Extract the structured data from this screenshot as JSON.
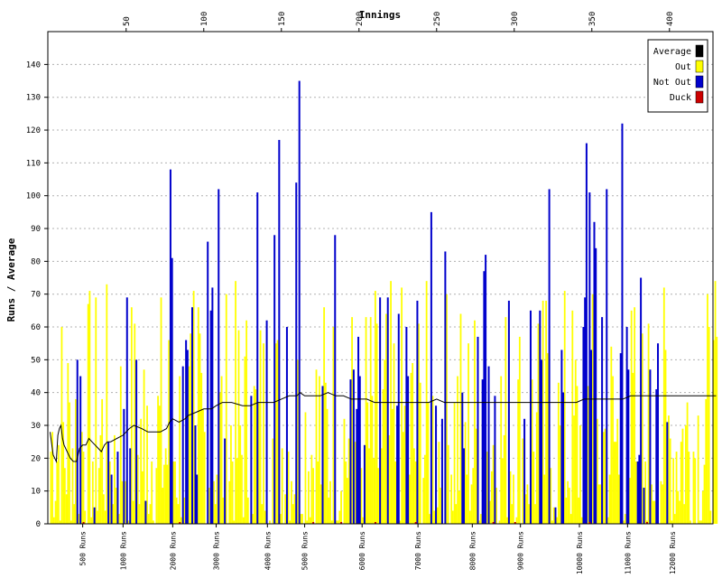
{
  "chart_data": {
    "type": "bar",
    "title": "",
    "xlabel_top": "Innings",
    "ylabel": "Runs / Average",
    "ylim": [
      0,
      150
    ],
    "innings_range": [
      1,
      430
    ],
    "y_ticks": [
      0,
      10,
      20,
      30,
      40,
      50,
      60,
      70,
      80,
      90,
      100,
      110,
      120,
      130,
      140
    ],
    "top_ticks": [
      50,
      100,
      150,
      200,
      250,
      300,
      350,
      400
    ],
    "bottom_ticks": [
      {
        "label": "500 Runs",
        "inning": 22
      },
      {
        "label": "1000 Runs",
        "inning": 48
      },
      {
        "label": "2000 Runs",
        "inning": 80
      },
      {
        "label": "3000 Runs",
        "inning": 108
      },
      {
        "label": "4000 Runs",
        "inning": 141
      },
      {
        "label": "5000 Runs",
        "inning": 165
      },
      {
        "label": "6000 Runs",
        "inning": 202
      },
      {
        "label": "7000 Runs",
        "inning": 238
      },
      {
        "label": "8000 Runs",
        "inning": 273
      },
      {
        "label": "9000 Runs",
        "inning": 304
      },
      {
        "label": "10000 Runs",
        "inning": 342
      },
      {
        "label": "11000 Runs",
        "inning": 373
      },
      {
        "label": "12000 Runs",
        "inning": 402
      }
    ],
    "grid": true,
    "legend_position": "top-right",
    "legend": [
      {
        "name": "Average",
        "color": "#000000"
      },
      {
        "name": "Out",
        "color": "#ffff00"
      },
      {
        "name": "Not Out",
        "color": "#0000cc"
      },
      {
        "name": "Duck",
        "color": "#cc0000"
      }
    ],
    "not_out_innings": [
      {
        "inning": 18,
        "runs": 50
      },
      {
        "inning": 20,
        "runs": 45
      },
      {
        "inning": 29,
        "runs": 5
      },
      {
        "inning": 38,
        "runs": 25
      },
      {
        "inning": 40,
        "runs": 15
      },
      {
        "inning": 44,
        "runs": 22
      },
      {
        "inning": 48,
        "runs": 35
      },
      {
        "inning": 50,
        "runs": 69
      },
      {
        "inning": 52,
        "runs": 23
      },
      {
        "inning": 56,
        "runs": 50
      },
      {
        "inning": 62,
        "runs": 7
      },
      {
        "inning": 78,
        "runs": 108
      },
      {
        "inning": 79,
        "runs": 81
      },
      {
        "inning": 86,
        "runs": 48
      },
      {
        "inning": 88,
        "runs": 56
      },
      {
        "inning": 89,
        "runs": 53
      },
      {
        "inning": 92,
        "runs": 66
      },
      {
        "inning": 94,
        "runs": 30
      },
      {
        "inning": 95,
        "runs": 15
      },
      {
        "inning": 102,
        "runs": 86
      },
      {
        "inning": 104,
        "runs": 65
      },
      {
        "inning": 105,
        "runs": 72
      },
      {
        "inning": 109,
        "runs": 102
      },
      {
        "inning": 113,
        "runs": 26
      },
      {
        "inning": 130,
        "runs": 39
      },
      {
        "inning": 134,
        "runs": 101
      },
      {
        "inning": 140,
        "runs": 62
      },
      {
        "inning": 145,
        "runs": 88
      },
      {
        "inning": 148,
        "runs": 117
      },
      {
        "inning": 153,
        "runs": 60
      },
      {
        "inning": 159,
        "runs": 104
      },
      {
        "inning": 161,
        "runs": 135
      },
      {
        "inning": 176,
        "runs": 42
      },
      {
        "inning": 184,
        "runs": 88
      },
      {
        "inning": 194,
        "runs": 44
      },
      {
        "inning": 196,
        "runs": 47
      },
      {
        "inning": 198,
        "runs": 35
      },
      {
        "inning": 199,
        "runs": 57
      },
      {
        "inning": 200,
        "runs": 45
      },
      {
        "inning": 203,
        "runs": 24
      },
      {
        "inning": 213,
        "runs": 69
      },
      {
        "inning": 218,
        "runs": 69
      },
      {
        "inning": 224,
        "runs": 36
      },
      {
        "inning": 225,
        "runs": 64
      },
      {
        "inning": 230,
        "runs": 60
      },
      {
        "inning": 231,
        "runs": 45
      },
      {
        "inning": 237,
        "runs": 68
      },
      {
        "inning": 246,
        "runs": 95
      },
      {
        "inning": 249,
        "runs": 36
      },
      {
        "inning": 253,
        "runs": 32
      },
      {
        "inning": 255,
        "runs": 83
      },
      {
        "inning": 266,
        "runs": 40
      },
      {
        "inning": 267,
        "runs": 23
      },
      {
        "inning": 276,
        "runs": 57
      },
      {
        "inning": 279,
        "runs": 44
      },
      {
        "inning": 280,
        "runs": 77
      },
      {
        "inning": 281,
        "runs": 82
      },
      {
        "inning": 283,
        "runs": 48
      },
      {
        "inning": 287,
        "runs": 39
      },
      {
        "inning": 296,
        "runs": 68
      },
      {
        "inning": 306,
        "runs": 32
      },
      {
        "inning": 310,
        "runs": 65
      },
      {
        "inning": 316,
        "runs": 65
      },
      {
        "inning": 317,
        "runs": 50
      },
      {
        "inning": 322,
        "runs": 102
      },
      {
        "inning": 326,
        "runs": 5
      },
      {
        "inning": 330,
        "runs": 53
      },
      {
        "inning": 331,
        "runs": 40
      },
      {
        "inning": 344,
        "runs": 60
      },
      {
        "inning": 345,
        "runs": 69
      },
      {
        "inning": 346,
        "runs": 116
      },
      {
        "inning": 348,
        "runs": 101
      },
      {
        "inning": 349,
        "runs": 53
      },
      {
        "inning": 351,
        "runs": 92
      },
      {
        "inning": 352,
        "runs": 84
      },
      {
        "inning": 356,
        "runs": 63
      },
      {
        "inning": 359,
        "runs": 102
      },
      {
        "inning": 368,
        "runs": 52
      },
      {
        "inning": 369,
        "runs": 122
      },
      {
        "inning": 372,
        "runs": 60
      },
      {
        "inning": 373,
        "runs": 47
      },
      {
        "inning": 379,
        "runs": 19
      },
      {
        "inning": 380,
        "runs": 21
      },
      {
        "inning": 381,
        "runs": 75
      },
      {
        "inning": 383,
        "runs": 11
      },
      {
        "inning": 387,
        "runs": 47
      },
      {
        "inning": 391,
        "runs": 41
      },
      {
        "inning": 392,
        "runs": 55
      },
      {
        "inning": 398,
        "runs": 31
      }
    ],
    "average_series": [
      [
        1,
        28
      ],
      [
        3,
        21
      ],
      [
        5,
        19
      ],
      [
        6,
        27
      ],
      [
        7,
        29
      ],
      [
        8,
        30
      ],
      [
        9,
        26
      ],
      [
        10,
        24
      ],
      [
        12,
        22
      ],
      [
        14,
        20
      ],
      [
        16,
        19
      ],
      [
        18,
        19
      ],
      [
        20,
        23
      ],
      [
        22,
        24
      ],
      [
        24,
        24
      ],
      [
        26,
        26
      ],
      [
        28,
        25
      ],
      [
        30,
        24
      ],
      [
        32,
        23
      ],
      [
        34,
        22
      ],
      [
        36,
        24
      ],
      [
        38,
        25
      ],
      [
        40,
        25
      ],
      [
        44,
        26
      ],
      [
        48,
        27
      ],
      [
        50,
        28
      ],
      [
        52,
        29
      ],
      [
        55,
        30
      ],
      [
        60,
        29
      ],
      [
        64,
        28
      ],
      [
        68,
        28
      ],
      [
        72,
        28
      ],
      [
        76,
        29
      ],
      [
        78,
        31
      ],
      [
        80,
        32
      ],
      [
        84,
        31
      ],
      [
        88,
        32
      ],
      [
        90,
        33
      ],
      [
        95,
        34
      ],
      [
        100,
        35
      ],
      [
        105,
        35
      ],
      [
        108,
        36
      ],
      [
        112,
        37
      ],
      [
        118,
        37
      ],
      [
        125,
        36
      ],
      [
        130,
        36
      ],
      [
        135,
        37
      ],
      [
        140,
        37
      ],
      [
        145,
        37
      ],
      [
        150,
        38
      ],
      [
        155,
        39
      ],
      [
        160,
        39
      ],
      [
        162,
        40
      ],
      [
        165,
        39
      ],
      [
        170,
        39
      ],
      [
        175,
        39
      ],
      [
        180,
        40
      ],
      [
        185,
        39
      ],
      [
        190,
        39
      ],
      [
        195,
        38
      ],
      [
        200,
        38
      ],
      [
        205,
        38
      ],
      [
        210,
        37
      ],
      [
        215,
        37
      ],
      [
        220,
        37
      ],
      [
        225,
        37
      ],
      [
        230,
        37
      ],
      [
        235,
        37
      ],
      [
        240,
        37
      ],
      [
        245,
        37
      ],
      [
        250,
        38
      ],
      [
        255,
        37
      ],
      [
        260,
        37
      ],
      [
        265,
        37
      ],
      [
        270,
        37
      ],
      [
        275,
        37
      ],
      [
        280,
        37
      ],
      [
        285,
        37
      ],
      [
        290,
        37
      ],
      [
        295,
        37
      ],
      [
        300,
        37
      ],
      [
        305,
        37
      ],
      [
        310,
        37
      ],
      [
        315,
        37
      ],
      [
        320,
        37
      ],
      [
        325,
        37
      ],
      [
        330,
        37
      ],
      [
        335,
        37
      ],
      [
        340,
        37
      ],
      [
        345,
        38
      ],
      [
        350,
        38
      ],
      [
        355,
        38
      ],
      [
        360,
        38
      ],
      [
        365,
        38
      ],
      [
        370,
        38
      ],
      [
        375,
        39
      ],
      [
        380,
        39
      ],
      [
        385,
        39
      ],
      [
        390,
        39
      ],
      [
        395,
        39
      ],
      [
        400,
        39
      ],
      [
        405,
        39
      ],
      [
        410,
        39
      ],
      [
        415,
        39
      ],
      [
        420,
        39
      ],
      [
        425,
        39
      ],
      [
        430,
        39
      ]
    ]
  }
}
